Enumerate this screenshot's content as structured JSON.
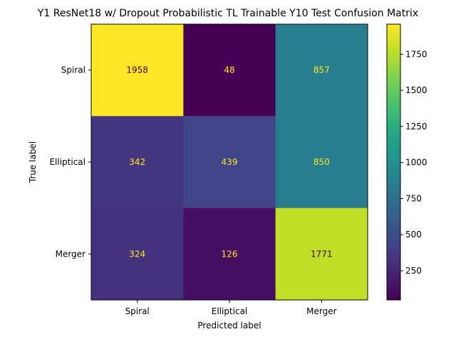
{
  "chart_data": {
    "type": "heatmap",
    "title": "Y1 ResNet18 w/ Dropout Probabilistic TL Trainable Y10 Test Confusion Matrix",
    "xlabel": "Predicted label",
    "ylabel": "True label",
    "x_categories": [
      "Spiral",
      "Elliptical",
      "Merger"
    ],
    "y_categories": [
      "Spiral",
      "Elliptical",
      "Merger"
    ],
    "values": [
      [
        1958,
        48,
        857
      ],
      [
        342,
        439,
        850
      ],
      [
        324,
        126,
        1771
      ]
    ],
    "colormap": "viridis",
    "color_range": [
      48,
      1958
    ],
    "colorbar_ticks": [
      "250",
      "500",
      "750",
      "1000",
      "1250",
      "1500",
      "1750"
    ],
    "colorbar_tick_values": [
      250,
      500,
      750,
      1000,
      1250,
      1500,
      1750
    ],
    "text_color_on_dark": "#fde725",
    "text_color_on_light": "#440154"
  }
}
